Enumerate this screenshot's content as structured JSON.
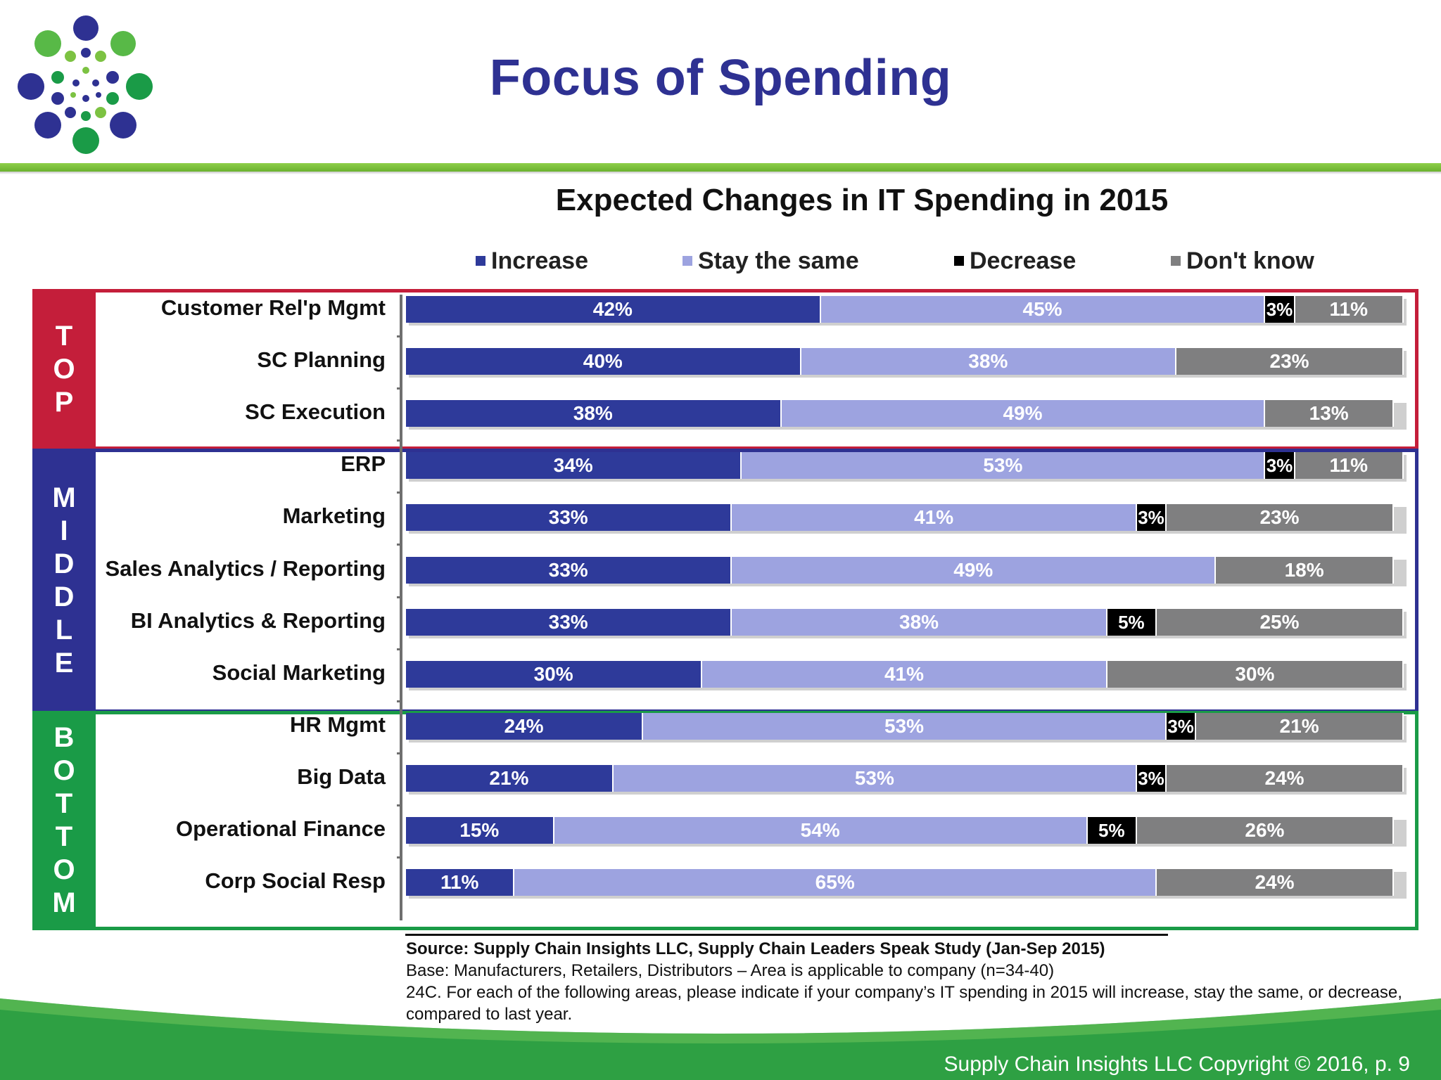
{
  "page": {
    "title": "Focus of Spending",
    "copyright": "Supply Chain Insights LLC Copyright © 2016, p. 9"
  },
  "logo": {
    "name": "dots-logo"
  },
  "colors": {
    "title_blue": "#2E3192",
    "increase": "#2E3A9A",
    "stay_the_same": "#9DA3E0",
    "decrease": "#000000",
    "dont_know": "#7F7F80",
    "top_group": "#C41E3A",
    "middle_group": "#2E3192",
    "bottom_group": "#1A9B47",
    "footer_green": "#2EA043"
  },
  "chart_data": {
    "type": "bar",
    "orientation": "horizontal",
    "stacked": true,
    "title": "Expected Changes in IT Spending in 2015",
    "legend_position": "top",
    "legend": [
      "Increase",
      "Stay the same",
      "Decrease",
      "Don't know"
    ],
    "groups": [
      {
        "letters": [
          "T",
          "O",
          "P"
        ],
        "rows": [
          0,
          2
        ]
      },
      {
        "letters": [
          "M",
          "I",
          "D",
          "D",
          "L",
          "E"
        ],
        "rows": [
          3,
          7
        ]
      },
      {
        "letters": [
          "B",
          "O",
          "T",
          "T",
          "O",
          "M"
        ],
        "rows": [
          8,
          11
        ]
      }
    ],
    "categories": [
      "Customer Rel'p Mgmt",
      "SC Planning",
      "SC Execution",
      "ERP",
      "Marketing",
      "Sales Analytics / Reporting",
      "BI Analytics & Reporting",
      "Social Marketing",
      "HR Mgmt",
      "Big Data",
      "Operational Finance",
      "Corp Social Resp"
    ],
    "series": [
      {
        "name": "Increase",
        "values": [
          42,
          40,
          38,
          34,
          33,
          33,
          33,
          30,
          24,
          21,
          15,
          11
        ]
      },
      {
        "name": "Stay the same",
        "values": [
          45,
          38,
          49,
          53,
          41,
          49,
          38,
          41,
          53,
          53,
          54,
          65
        ]
      },
      {
        "name": "Decrease",
        "values": [
          3,
          0,
          0,
          3,
          3,
          0,
          5,
          0,
          3,
          3,
          5,
          0
        ]
      },
      {
        "name": "Don't know",
        "values": [
          11,
          23,
          13,
          11,
          23,
          18,
          25,
          30,
          21,
          24,
          26,
          24
        ]
      }
    ],
    "xlim": [
      0,
      101
    ],
    "value_suffix": "%"
  },
  "source": {
    "line1": "Source:  Supply Chain Insights LLC, Supply Chain Leaders Speak Study (Jan-Sep 2015)",
    "line2": "Base:  Manufacturers, Retailers, Distributors – Area is applicable to company (n=34-40)",
    "line3": "24C. For each of the following areas, please indicate if your company’s IT spending in 2015 will increase, stay the same, or decrease, compared to last year."
  }
}
